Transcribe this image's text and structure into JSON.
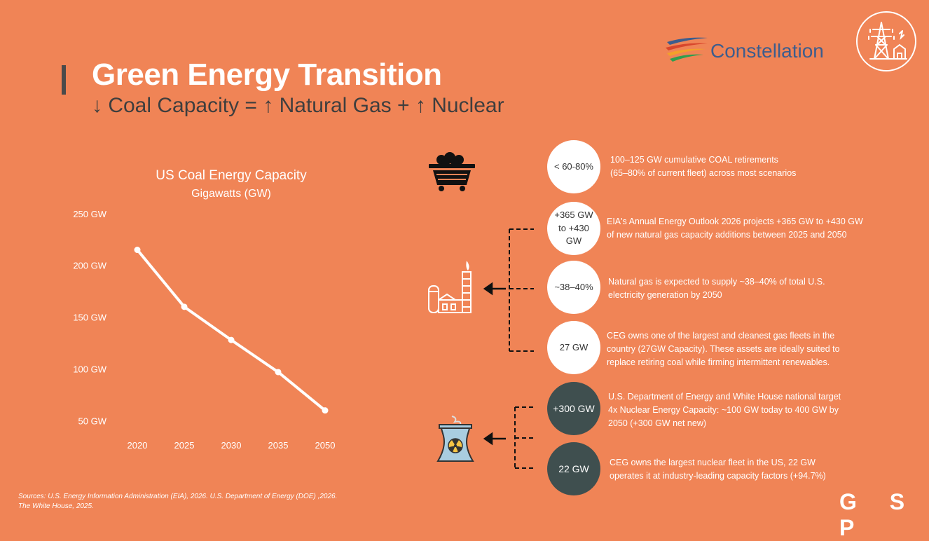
{
  "header": {
    "title": "Green Energy Transition",
    "subtitle": "↓ Coal Capacity = ↑ Natural Gas + ↑ Nuclear"
  },
  "brand": {
    "name": "Constellation",
    "colors": [
      "#2f9e4f",
      "#f2a02b",
      "#d8462c",
      "#3d5d8d"
    ]
  },
  "chart_data": {
    "type": "line",
    "title": "US Coal Energy Capacity",
    "subtitle": "Gigawatts (GW)",
    "categories": [
      "2020",
      "2025",
      "2030",
      "2035",
      "2050"
    ],
    "values": [
      215,
      160,
      128,
      97,
      60
    ],
    "ylim": [
      30,
      260
    ],
    "yticks": [
      50,
      100,
      150,
      200,
      250
    ],
    "ytick_labels": [
      "50 GW",
      "100 GW",
      "150 GW",
      "200 GW",
      "250 GW"
    ],
    "line_color": "#ffffff"
  },
  "coal": {
    "icon": "coal-cart-icon",
    "circle": "< 60-80%",
    "text": [
      "100–125 GW cumulative COAL retirements",
      "(65–80% of current fleet) across most scenarios"
    ]
  },
  "gas": {
    "icon": "gas-plant-icon",
    "items": [
      {
        "circle": "+365 GW to +430 GW",
        "text": [
          "EIA's Annual Energy Outlook 2026 projects +365 GW to +430 GW",
          "of new natural gas capacity additions between 2025 and 2050"
        ]
      },
      {
        "circle": "~38–40%",
        "text": [
          "Natural gas is expected to supply ~38–40% of total U.S.",
          "electricity generation by 2050"
        ]
      },
      {
        "circle": "27 GW",
        "text": [
          "CEG owns one of the largest and cleanest gas fleets in the",
          "country (27GW Capacity). These assets are ideally suited to",
          "replace retiring coal while firming intermittent renewables."
        ]
      }
    ]
  },
  "nuclear": {
    "icon": "nuclear-plant-icon",
    "items": [
      {
        "circle": "+300 GW",
        "text": [
          "U.S. Department of Energy and White House  national target",
          "4x Nuclear Energy Capacity:  ~100 GW today to 400 GW by",
          "2050 (+300 GW net new)"
        ]
      },
      {
        "circle": "22 GW",
        "text": [
          "CEG owns the largest nuclear fleet in the US, 22 GW",
          "operates it at industry-leading capacity factors (+94.7%)"
        ]
      }
    ],
    "accent": "#3f4f4f"
  },
  "footer": {
    "sources": [
      "Sources: U.S. Energy Information Administration (EIA), 2026. U.S. Department of Energy (DOE) ,2026.",
      "The White House, 2025."
    ],
    "logo": "G S P"
  }
}
